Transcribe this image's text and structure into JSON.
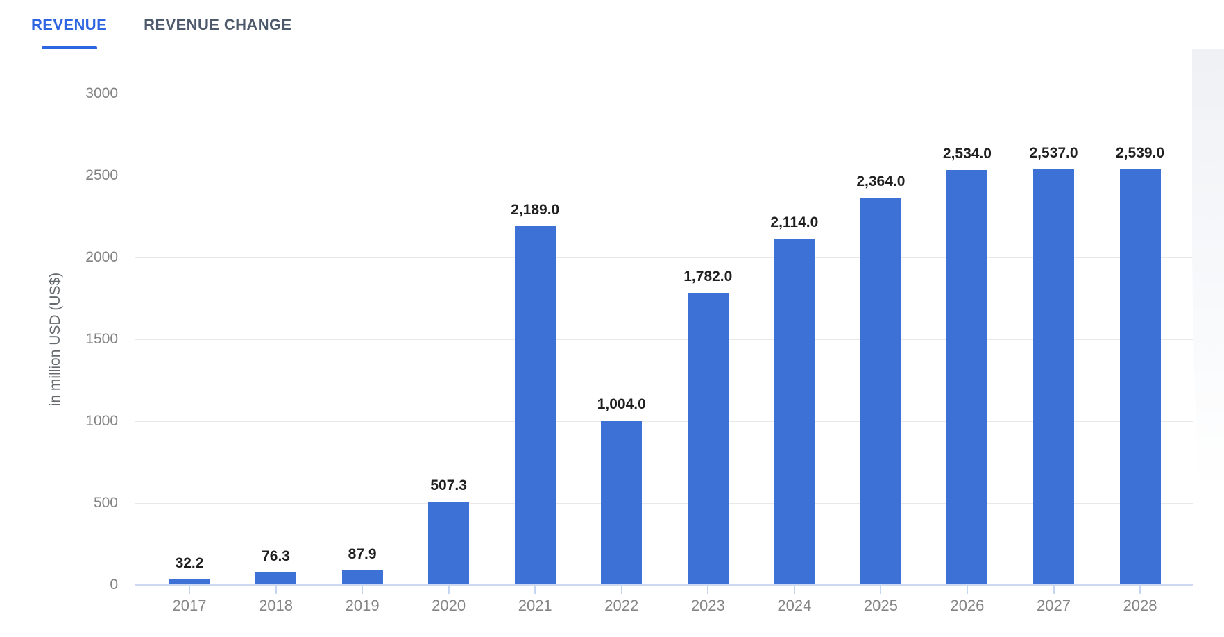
{
  "tabs": [
    {
      "label": "REVENUE",
      "active": true
    },
    {
      "label": "REVENUE CHANGE",
      "active": false
    }
  ],
  "colors": {
    "accent": "#2e65e0",
    "tab_inactive": "#4d5a6b",
    "divider": "#eef0f2",
    "bar": "#3e71d6",
    "gridline": "#e8e8e8",
    "baseline": "#cdd9f0",
    "tick_mark": "#c6d5f0",
    "value_label": "#1f1f1f",
    "axis_label": "#858585"
  },
  "chart_data": {
    "type": "bar",
    "title": "",
    "xlabel": "",
    "ylabel": "in million USD (US$)",
    "categories": [
      "2017",
      "2018",
      "2019",
      "2020",
      "2021",
      "2022",
      "2023",
      "2024",
      "2025",
      "2026",
      "2027",
      "2028"
    ],
    "values": [
      32.2,
      76.3,
      87.9,
      507.3,
      2189.0,
      1004.0,
      1782.0,
      2114.0,
      2364.0,
      2534.0,
      2537.0,
      2539.0
    ],
    "value_labels": [
      "32.2",
      "76.3",
      "87.9",
      "507.3",
      "2,189.0",
      "1,004.0",
      "1,782.0",
      "2,114.0",
      "2,364.0",
      "2,534.0",
      "2,537.0",
      "2,539.0"
    ],
    "ylim": [
      0,
      3000
    ],
    "yticks": [
      0,
      500,
      1000,
      1500,
      2000,
      2500,
      3000
    ],
    "grid": true,
    "legend": "none",
    "bar_color": "#3e71d6"
  }
}
